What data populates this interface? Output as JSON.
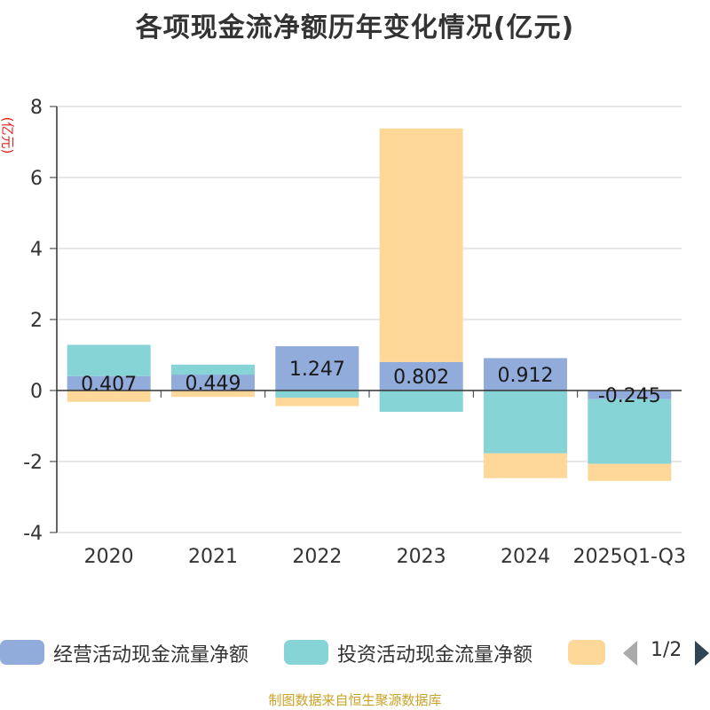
{
  "chart_data": {
    "type": "bar",
    "stacked": true,
    "title": "各项现金流净额历年变化情况(亿元)",
    "ylabel": "(亿元)",
    "xlabel": "",
    "ylim": [
      -4,
      8
    ],
    "yticks": [
      -4,
      -2,
      0,
      2,
      4,
      6,
      8
    ],
    "categories": [
      "2020",
      "2021",
      "2022",
      "2023",
      "2024",
      "2025Q1-Q3"
    ],
    "series": [
      {
        "name": "经营活动现金流量净额",
        "color": "#91acdb",
        "values": [
          0.407,
          0.449,
          1.247,
          0.802,
          0.912,
          -0.245
        ],
        "show_labels": true
      },
      {
        "name": "投资活动现金流量净额",
        "color": "#87d4d6",
        "values": [
          0.88,
          0.28,
          -0.2,
          -0.6,
          -1.77,
          -1.82
        ],
        "show_labels": false
      },
      {
        "name": "",
        "color": "#fdd899",
        "values": [
          -0.32,
          -0.18,
          -0.24,
          6.58,
          -0.7,
          -0.48
        ],
        "show_labels": false
      }
    ],
    "grid": true
  },
  "legend": {
    "items": [
      {
        "label": "经营活动现金流量净额",
        "color": "#91acdb"
      },
      {
        "label": "投资活动现金流量净额",
        "color": "#87d4d6"
      },
      {
        "label": "",
        "color": "#fdd899"
      }
    ],
    "page": "1/2"
  },
  "source": "制图数据来自恒生聚源数据库"
}
